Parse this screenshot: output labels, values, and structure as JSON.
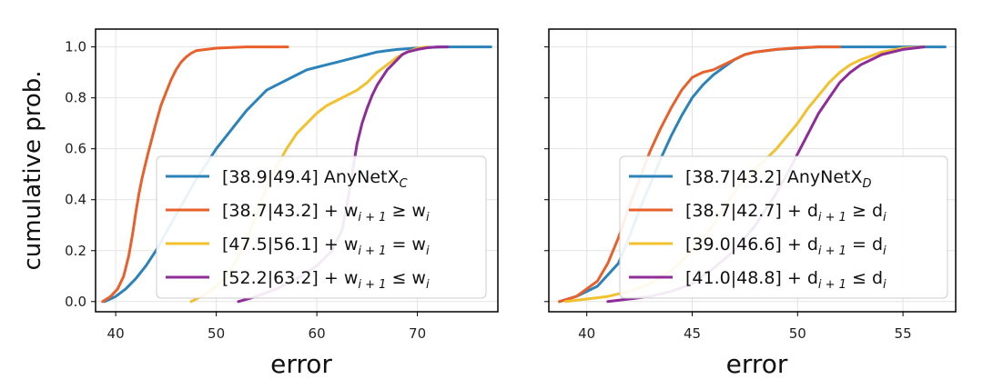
{
  "chart_data": [
    {
      "type": "line",
      "xlabel": "error",
      "ylabel": "cumulative prob.",
      "xlim": [
        38,
        78
      ],
      "ylim": [
        -0.04,
        1.07
      ],
      "xticks": [
        "40",
        "50",
        "60",
        "70"
      ],
      "yticks": [
        "0.0",
        "0.2",
        "0.4",
        "0.6",
        "0.8",
        "1.0"
      ],
      "grid": true,
      "legend_position": "lower-right",
      "series": [
        {
          "name": "AnyNetX_C",
          "legend_parts": [
            "[38.9|49.4] AnyNetX",
            "C",
            ""
          ],
          "color": "#2b83ba",
          "x": [
            38.9,
            40,
            41,
            42,
            43,
            44,
            45,
            46,
            47,
            48,
            49,
            50,
            51,
            52,
            53,
            54,
            55,
            56,
            57,
            58,
            59,
            60,
            61,
            62,
            63,
            64,
            65,
            66,
            67,
            68,
            69,
            70,
            71,
            72,
            73,
            74,
            75,
            77.3
          ],
          "y": [
            0.0,
            0.02,
            0.05,
            0.09,
            0.14,
            0.2,
            0.27,
            0.34,
            0.41,
            0.48,
            0.54,
            0.6,
            0.65,
            0.7,
            0.75,
            0.79,
            0.83,
            0.85,
            0.87,
            0.89,
            0.91,
            0.92,
            0.93,
            0.94,
            0.95,
            0.96,
            0.97,
            0.98,
            0.985,
            0.99,
            0.993,
            0.996,
            0.998,
            0.999,
            1.0,
            1.0,
            1.0,
            1.0
          ]
        },
        {
          "name": "",
          "legend_parts": [
            "[38.7|43.2] + w",
            "i + 1",
            " ≥ w",
            "i",
            ""
          ],
          "color": "#e8612c",
          "x": [
            38.7,
            39.5,
            40.2,
            40.8,
            41.3,
            41.7,
            42.0,
            42.3,
            42.6,
            42.9,
            43.2,
            43.6,
            44.0,
            44.5,
            45.0,
            45.5,
            46.0,
            46.5,
            47.0,
            47.5,
            48.0,
            49.0,
            50.0,
            51.5,
            53.0,
            55.0,
            57.1
          ],
          "y": [
            0.0,
            0.02,
            0.05,
            0.1,
            0.18,
            0.27,
            0.35,
            0.42,
            0.48,
            0.53,
            0.58,
            0.64,
            0.7,
            0.77,
            0.82,
            0.87,
            0.91,
            0.94,
            0.96,
            0.975,
            0.985,
            0.99,
            0.995,
            0.998,
            1.0,
            1.0,
            1.0
          ]
        },
        {
          "name": "",
          "legend_parts": [
            "[47.5|56.1] + w",
            "i + 1",
            " = w",
            "i",
            ""
          ],
          "color": "#f2c12e",
          "x": [
            47.5,
            49.0,
            50.0,
            51.0,
            52.0,
            53.0,
            54.0,
            55.0,
            56.0,
            57.0,
            58.0,
            59.0,
            60.0,
            61.0,
            62.0,
            63.0,
            64.0,
            65.0,
            66.0,
            67.0,
            68.0,
            69.0,
            70.0,
            71.0
          ],
          "y": [
            0.0,
            0.03,
            0.06,
            0.1,
            0.16,
            0.24,
            0.34,
            0.45,
            0.53,
            0.6,
            0.66,
            0.7,
            0.74,
            0.77,
            0.79,
            0.81,
            0.83,
            0.86,
            0.9,
            0.93,
            0.96,
            0.98,
            0.995,
            1.0
          ]
        },
        {
          "name": "",
          "legend_parts": [
            "[52.2|63.2] + w",
            "i + 1",
            " ≤ w",
            "i",
            ""
          ],
          "color": "#8e2c98",
          "x": [
            52.2,
            54.0,
            56.0,
            58.0,
            60.0,
            61.5,
            62.5,
            63.0,
            63.5,
            64.0,
            64.5,
            65.0,
            65.5,
            66.0,
            66.5,
            67.0,
            67.5,
            68.0,
            68.5,
            69.0,
            70.0,
            71.0,
            72.0,
            73.0
          ],
          "y": [
            0.0,
            0.02,
            0.05,
            0.09,
            0.14,
            0.2,
            0.28,
            0.38,
            0.5,
            0.62,
            0.7,
            0.76,
            0.81,
            0.85,
            0.88,
            0.91,
            0.93,
            0.95,
            0.97,
            0.98,
            0.99,
            0.997,
            1.0,
            1.0
          ]
        }
      ]
    },
    {
      "type": "line",
      "xlabel": "error",
      "ylabel": "",
      "xlim": [
        38.2,
        57.5
      ],
      "ylim": [
        -0.04,
        1.07
      ],
      "xticks": [
        "40",
        "45",
        "50",
        "55"
      ],
      "yticks": [],
      "grid": true,
      "legend_position": "lower-right",
      "series": [
        {
          "name": "AnyNetX_D",
          "legend_parts": [
            "[38.7|43.2] AnyNetX",
            "D",
            ""
          ],
          "color": "#2b83ba",
          "x": [
            38.7,
            39.5,
            40.5,
            41.5,
            42.0,
            42.5,
            43.0,
            43.5,
            44.0,
            44.5,
            45.0,
            45.5,
            46.0,
            46.5,
            47.0,
            47.5,
            48.0,
            49.0,
            50.0,
            51.0,
            52.0,
            53.0,
            55.0,
            57.0
          ],
          "y": [
            0.0,
            0.02,
            0.06,
            0.15,
            0.25,
            0.36,
            0.46,
            0.56,
            0.65,
            0.73,
            0.8,
            0.85,
            0.89,
            0.92,
            0.95,
            0.97,
            0.98,
            0.99,
            0.995,
            1.0,
            1.0,
            1.0,
            1.0,
            1.0
          ]
        },
        {
          "name": "",
          "legend_parts": [
            "[38.7|42.7] + d",
            "i + 1",
            " ≥ d",
            "i",
            ""
          ],
          "color": "#e8612c",
          "x": [
            38.7,
            39.5,
            40.5,
            41.0,
            41.5,
            42.0,
            42.5,
            43.0,
            43.5,
            44.0,
            44.5,
            45.0,
            45.5,
            46.0,
            46.5,
            47.0,
            47.5,
            48.0,
            49.0,
            50.0,
            51.0,
            52.0
          ],
          "y": [
            0.0,
            0.02,
            0.08,
            0.15,
            0.25,
            0.37,
            0.48,
            0.59,
            0.68,
            0.76,
            0.83,
            0.88,
            0.9,
            0.91,
            0.93,
            0.95,
            0.97,
            0.98,
            0.99,
            0.997,
            1.0,
            1.0
          ]
        },
        {
          "name": "",
          "legend_parts": [
            "[39.0|46.6] + d",
            "i + 1",
            " = d",
            "i",
            ""
          ],
          "color": "#f2c12e",
          "x": [
            39.0,
            40.0,
            41.0,
            42.0,
            43.0,
            44.0,
            45.0,
            46.0,
            46.6,
            47.0,
            47.5,
            48.0,
            48.5,
            49.0,
            49.5,
            50.0,
            50.5,
            51.0,
            51.5,
            52.0,
            52.5,
            53.0,
            54.0,
            55.0,
            56.0
          ],
          "y": [
            0.0,
            0.01,
            0.02,
            0.04,
            0.07,
            0.12,
            0.2,
            0.3,
            0.38,
            0.43,
            0.48,
            0.52,
            0.56,
            0.6,
            0.65,
            0.7,
            0.76,
            0.81,
            0.86,
            0.9,
            0.93,
            0.95,
            0.98,
            0.995,
            1.0
          ]
        },
        {
          "name": "",
          "legend_parts": [
            "[41.0|48.8] + d",
            "i + 1",
            " ≤ d",
            "i",
            ""
          ],
          "color": "#8e2c98",
          "x": [
            41.0,
            42.0,
            43.0,
            44.0,
            45.0,
            46.0,
            47.0,
            48.0,
            48.8,
            49.5,
            50.0,
            50.5,
            51.0,
            51.5,
            52.0,
            52.5,
            53.0,
            53.5,
            54.0,
            55.0,
            56.0
          ],
          "y": [
            0.0,
            0.01,
            0.02,
            0.04,
            0.07,
            0.13,
            0.2,
            0.3,
            0.4,
            0.5,
            0.58,
            0.66,
            0.74,
            0.8,
            0.86,
            0.9,
            0.93,
            0.95,
            0.97,
            0.99,
            1.0
          ]
        }
      ]
    }
  ]
}
